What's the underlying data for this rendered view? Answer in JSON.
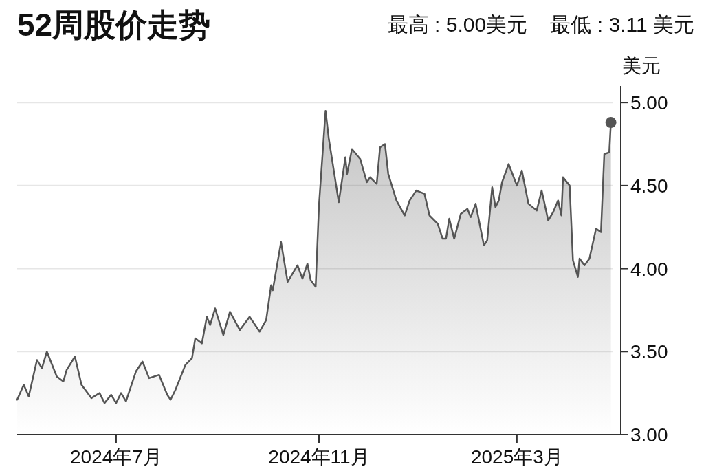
{
  "chart_data": {
    "type": "area",
    "title": "52周股价走势",
    "subtitle": "最高 : 5.00美元    最低 : 3.11 美元",
    "ylabel": "美元",
    "xlim": [
      "2024-05-02",
      "2025-05-03"
    ],
    "ylim": [
      3,
      5.1
    ],
    "xticks": [
      {
        "value": "2024-07-01",
        "label": "2024年7月"
      },
      {
        "value": "2024-11-01",
        "label": "2024年11月"
      },
      {
        "value": "2025-03-01",
        "label": "2025年3月"
      }
    ],
    "yticks": [
      {
        "value": 3,
        "label": "3.00"
      },
      {
        "value": 3.5,
        "label": "3.50"
      },
      {
        "value": 4,
        "label": "4.00"
      },
      {
        "value": 4.5,
        "label": "4.50"
      },
      {
        "value": 5,
        "label": "5.00"
      }
    ],
    "grid": "y",
    "series": [
      {
        "color": "#555555",
        "x": [
          "2024-05-02",
          "2024-05-06",
          "2024-05-09",
          "2024-05-14",
          "2024-05-17",
          "2024-05-20",
          "2024-05-26",
          "2024-05-30",
          "2024-06-01",
          "2024-06-06",
          "2024-06-10",
          "2024-06-16",
          "2024-06-21",
          "2024-06-24",
          "2024-06-28",
          "2024-07-01",
          "2024-07-04",
          "2024-07-07",
          "2024-07-13",
          "2024-07-17",
          "2024-07-21",
          "2024-07-27",
          "2024-08-01",
          "2024-08-03",
          "2024-08-06",
          "2024-08-12",
          "2024-08-16",
          "2024-08-18",
          "2024-08-22",
          "2024-08-25",
          "2024-08-27",
          "2024-08-30",
          "2024-09-04",
          "2024-09-08",
          "2024-09-14",
          "2024-09-20",
          "2024-09-26",
          "2024-09-30",
          "2024-10-03",
          "2024-10-04",
          "2024-10-09",
          "2024-10-11",
          "2024-10-13",
          "2024-10-19",
          "2024-10-22",
          "2024-10-25",
          "2024-10-27",
          "2024-10-30",
          "2024-11-01",
          "2024-11-05",
          "2024-11-07",
          "2024-11-13",
          "2024-11-17",
          "2024-11-18",
          "2024-11-21",
          "2024-11-26",
          "2024-11-30",
          "2024-12-02",
          "2024-12-06",
          "2024-12-08",
          "2024-12-11",
          "2024-12-13",
          "2024-12-18",
          "2024-12-23",
          "2024-12-26",
          "2024-12-30",
          "2025-01-04",
          "2025-01-07",
          "2025-01-12",
          "2025-01-15",
          "2025-01-17",
          "2025-01-19",
          "2025-01-22",
          "2025-01-26",
          "2025-01-30",
          "2025-02-01",
          "2025-02-04",
          "2025-02-09",
          "2025-02-11",
          "2025-02-14",
          "2025-02-16",
          "2025-02-18",
          "2025-02-20",
          "2025-02-24",
          "2025-03-01",
          "2025-03-04",
          "2025-03-08",
          "2025-03-13",
          "2025-03-16",
          "2025-03-20",
          "2025-03-23",
          "2025-03-26",
          "2025-03-28",
          "2025-03-29",
          "2025-04-02",
          "2025-04-04",
          "2025-04-07",
          "2025-04-08",
          "2025-04-11",
          "2025-04-14",
          "2025-04-18",
          "2025-04-21",
          "2025-04-23",
          "2025-04-26",
          "2025-04-27"
        ],
        "values": [
          3.21,
          3.3,
          3.23,
          3.45,
          3.4,
          3.5,
          3.35,
          3.32,
          3.39,
          3.47,
          3.3,
          3.22,
          3.25,
          3.19,
          3.24,
          3.19,
          3.25,
          3.2,
          3.38,
          3.44,
          3.34,
          3.36,
          3.24,
          3.21,
          3.27,
          3.42,
          3.46,
          3.58,
          3.55,
          3.71,
          3.66,
          3.76,
          3.6,
          3.74,
          3.63,
          3.71,
          3.62,
          3.69,
          3.9,
          3.87,
          4.16,
          4.04,
          3.92,
          4.02,
          3.94,
          4.03,
          3.93,
          3.89,
          4.38,
          4.95,
          4.78,
          4.4,
          4.67,
          4.57,
          4.72,
          4.66,
          4.52,
          4.55,
          4.51,
          4.73,
          4.75,
          4.57,
          4.41,
          4.32,
          4.41,
          4.47,
          4.45,
          4.32,
          4.27,
          4.18,
          4.18,
          4.3,
          4.18,
          4.33,
          4.36,
          4.31,
          4.39,
          4.14,
          4.17,
          4.49,
          4.37,
          4.41,
          4.52,
          4.63,
          4.5,
          4.59,
          4.39,
          4.35,
          4.47,
          4.29,
          4.34,
          4.41,
          4.32,
          4.55,
          4.5,
          4.05,
          3.95,
          4.06,
          4.02,
          4.06,
          4.24,
          4.22,
          4.69,
          4.7,
          4.88
        ]
      },
      {
        "type": "scatter",
        "color": "#555555",
        "x": [
          "2025-04-27"
        ],
        "values": [
          4.88
        ]
      }
    ]
  }
}
